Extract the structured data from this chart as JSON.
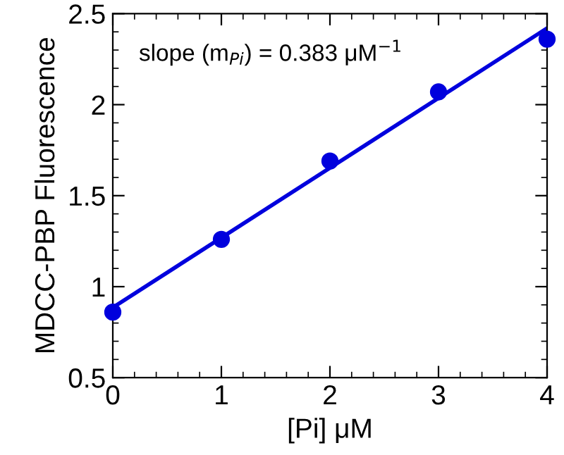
{
  "chart_data": {
    "type": "scatter",
    "xlabel": "[Pi] μM",
    "ylabel": "MDCC-PBP Fluorescence",
    "x": [
      0,
      1,
      2,
      3,
      4
    ],
    "series": [
      {
        "color": "#0000dd",
        "marker": "circle",
        "values": [
          0.86,
          1.26,
          1.69,
          2.07,
          2.36
        ]
      },
      {
        "type": "line",
        "color": "#0000dd",
        "marker": "none",
        "x": [
          0,
          4
        ],
        "values": [
          0.885,
          2.42
        ]
      }
    ],
    "annotations": [
      "slope (m$_{Pi}$) = 0.383 μM$^{−1}$"
    ],
    "xlim": [
      0,
      4
    ],
    "xticks": [
      0,
      1,
      2,
      3,
      4
    ],
    "ylim": [
      0.5,
      2.5
    ],
    "yticks": [
      0.5,
      1,
      {
        "value": 1.5,
        "label": "1.5"
      },
      2,
      {
        "value": 2.5,
        "label": "2.5"
      }
    ],
    "grid": false
  }
}
